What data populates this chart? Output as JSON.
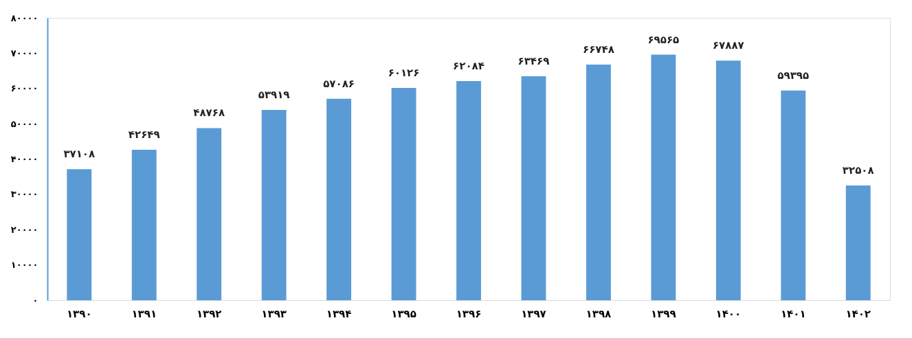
{
  "chart_data": {
    "type": "bar",
    "categories": [
      "۱۳۹۰",
      "۱۳۹۱",
      "۱۳۹۲",
      "۱۳۹۳",
      "۱۳۹۴",
      "۱۳۹۵",
      "۱۳۹۶",
      "۱۳۹۷",
      "۱۳۹۸",
      "۱۳۹۹",
      "۱۴۰۰",
      "۱۴۰۱",
      "۱۴۰۲"
    ],
    "values": [
      37108,
      42649,
      48768,
      53919,
      57086,
      60126,
      62084,
      63469,
      66748,
      69565,
      67887,
      59395,
      32508
    ],
    "value_labels": [
      "۳۷۱۰۸",
      "۴۲۶۴۹",
      "۴۸۷۶۸",
      "۵۳۹۱۹",
      "۵۷۰۸۶",
      "۶۰۱۲۶",
      "۶۲۰۸۴",
      "۶۳۴۶۹",
      "۶۶۷۴۸",
      "۶۹۵۶۵",
      "۶۷۸۸۷",
      "۵۹۳۹۵",
      "۳۲۵۰۸"
    ],
    "color": "#5b9bd5",
    "ylim": [
      0,
      80000
    ],
    "yticks": [
      {
        "value": 0,
        "label": "۰"
      },
      {
        "value": 10000,
        "label": "۱۰۰۰۰"
      },
      {
        "value": 20000,
        "label": "۲۰۰۰۰"
      },
      {
        "value": 30000,
        "label": "۳۰۰۰۰"
      },
      {
        "value": 40000,
        "label": "۴۰۰۰۰"
      },
      {
        "value": 50000,
        "label": "۵۰۰۰۰"
      },
      {
        "value": 60000,
        "label": "۶۰۰۰۰"
      },
      {
        "value": 70000,
        "label": "۷۰۰۰۰"
      },
      {
        "value": 80000,
        "label": "۸۰۰۰۰"
      }
    ],
    "grid": false
  }
}
